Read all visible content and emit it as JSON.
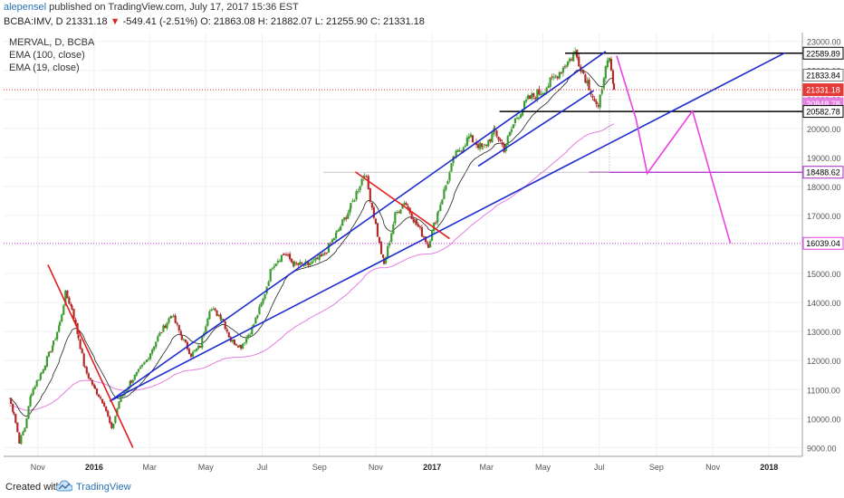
{
  "header": {
    "author": "alepensel",
    "published_text": "published on TradingView.com, July 17, 2017 15:36 EST",
    "symbol": "BCBA:IMV, D",
    "last": "21331.18",
    "change": "-549.41 (-2.51%)",
    "ohlc": "O: 21863.08 H: 21882.07 L: 21255.90 C: 21331.18"
  },
  "legend": {
    "title": "MERVAL, D, BCBA",
    "ema100": "EMA (100, close)",
    "ema19": "EMA (19, close)"
  },
  "footer": {
    "created_with": "Created with",
    "brand": "TradingView"
  },
  "colors": {
    "up": "#3c9c2f",
    "down": "#b02a2a",
    "ema19": "#222222",
    "ema100": "#e37fe0",
    "trend_blue": "#1d2bd0",
    "trend_red": "#e41c1c",
    "projection": "#ee3ee5",
    "hline_purple": "#a726c9"
  },
  "chart_data": {
    "type": "candlestick",
    "title": "MERVAL, D, BCBA",
    "x_ticks": [
      "Nov",
      "2016",
      "Mar",
      "May",
      "Jul",
      "Sep",
      "Nov",
      "2017",
      "Mar",
      "May",
      "Jul",
      "Sep",
      "Nov",
      "2018"
    ],
    "y_ticks": [
      9000,
      10000,
      11000,
      12000,
      13000,
      14000,
      15000,
      16000,
      17000,
      18000,
      19000,
      20000,
      21000,
      22000,
      23000
    ],
    "ylim": [
      8700,
      23300
    ],
    "price_path": [
      [
        "2015-10-01",
        10700
      ],
      [
        "2015-10-06",
        10200
      ],
      [
        "2015-10-12",
        9200
      ],
      [
        "2015-10-18",
        9700
      ],
      [
        "2015-10-25",
        10900
      ],
      [
        "2015-11-05",
        11600
      ],
      [
        "2015-11-18",
        12600
      ],
      [
        "2015-11-25",
        13300
      ],
      [
        "2015-12-01",
        14300
      ],
      [
        "2015-12-08",
        13800
      ],
      [
        "2015-12-15",
        12800
      ],
      [
        "2015-12-22",
        11700
      ],
      [
        "2016-01-02",
        11000
      ],
      [
        "2016-01-12",
        10500
      ],
      [
        "2016-01-20",
        9600
      ],
      [
        "2016-01-28",
        10600
      ],
      [
        "2016-02-10",
        11300
      ],
      [
        "2016-02-25",
        11900
      ],
      [
        "2016-03-10",
        12800
      ],
      [
        "2016-03-25",
        13600
      ],
      [
        "2016-04-05",
        12800
      ],
      [
        "2016-04-15",
        12200
      ],
      [
        "2016-04-25",
        12500
      ],
      [
        "2016-05-05",
        13800
      ],
      [
        "2016-05-18",
        13500
      ],
      [
        "2016-05-28",
        12700
      ],
      [
        "2016-06-08",
        12500
      ],
      [
        "2016-06-20",
        13100
      ],
      [
        "2016-07-02",
        14100
      ],
      [
        "2016-07-12",
        15300
      ],
      [
        "2016-07-25",
        15700
      ],
      [
        "2016-08-05",
        15300
      ],
      [
        "2016-08-20",
        15300
      ],
      [
        "2016-09-05",
        15600
      ],
      [
        "2016-09-20",
        16400
      ],
      [
        "2016-10-05",
        17300
      ],
      [
        "2016-10-20",
        18500
      ],
      [
        "2016-10-30",
        17000
      ],
      [
        "2016-11-05",
        16000
      ],
      [
        "2016-11-10",
        15300
      ],
      [
        "2016-11-22",
        17000
      ],
      [
        "2016-12-02",
        17500
      ],
      [
        "2016-12-15",
        16700
      ],
      [
        "2016-12-28",
        16000
      ],
      [
        "2017-01-08",
        17200
      ],
      [
        "2017-01-25",
        19000
      ],
      [
        "2017-02-10",
        19700
      ],
      [
        "2017-02-25",
        19300
      ],
      [
        "2017-03-10",
        19900
      ],
      [
        "2017-03-20",
        19300
      ],
      [
        "2017-04-01",
        20300
      ],
      [
        "2017-04-15",
        21000
      ],
      [
        "2017-05-01",
        21300
      ],
      [
        "2017-05-15",
        21800
      ],
      [
        "2017-05-28",
        22300
      ],
      [
        "2017-06-05",
        22600
      ],
      [
        "2017-06-14",
        21900
      ],
      [
        "2017-06-22",
        21300
      ],
      [
        "2017-06-30",
        20600
      ],
      [
        "2017-07-06",
        21900
      ],
      [
        "2017-07-12",
        22300
      ],
      [
        "2017-07-17",
        21331
      ]
    ],
    "ema19_label": "EMA (19, close)",
    "ema100_label": "EMA (100, close)",
    "horizontal_levels": [
      {
        "value": 22589.89,
        "label": "22589.89",
        "style": "black-segment",
        "from": "2017-05-25",
        "to": "2018-01-18"
      },
      {
        "value": 21833.84,
        "label": "21833.84",
        "style": "axis-label-only"
      },
      {
        "value": 21331.18,
        "label": "21331.18",
        "style": "dotted-red"
      },
      {
        "value": 20848.78,
        "label": "20848.78",
        "style": "ema100-label"
      },
      {
        "value": 20582.78,
        "label": "20582.78",
        "style": "black-segment",
        "from": "2017-03-15",
        "to": "2018-01-18"
      },
      {
        "value": 18488.62,
        "label": "18488.62",
        "style": "purple-segment",
        "from": "2017-06-20",
        "to": "2018-01-18"
      },
      {
        "value": 16039.04,
        "label": "16039.04",
        "style": "dotted-magenta"
      }
    ],
    "trendlines": [
      {
        "color": "blue",
        "from": [
          "2016-01-18",
          10600
        ],
        "to": [
          "2018-01-18",
          22600
        ]
      },
      {
        "color": "blue",
        "from": [
          "2016-01-18",
          10600
        ],
        "to": [
          "2017-07-08",
          22650
        ]
      },
      {
        "color": "blue",
        "from": [
          "2017-02-20",
          18700
        ],
        "to": [
          "2017-06-25",
          21300
        ]
      },
      {
        "color": "red",
        "from": [
          "2015-11-12",
          15300
        ],
        "to": [
          "2016-02-12",
          9000
        ]
      },
      {
        "color": "red",
        "from": [
          "2016-10-10",
          18500
        ],
        "to": [
          "2017-01-20",
          16200
        ]
      }
    ],
    "projection": [
      [
        "2017-07-20",
        22500
      ],
      [
        "2017-08-10",
        20300
      ],
      [
        "2017-08-22",
        18450
      ],
      [
        "2017-10-10",
        20600
      ],
      [
        "2017-11-20",
        16039
      ]
    ]
  }
}
